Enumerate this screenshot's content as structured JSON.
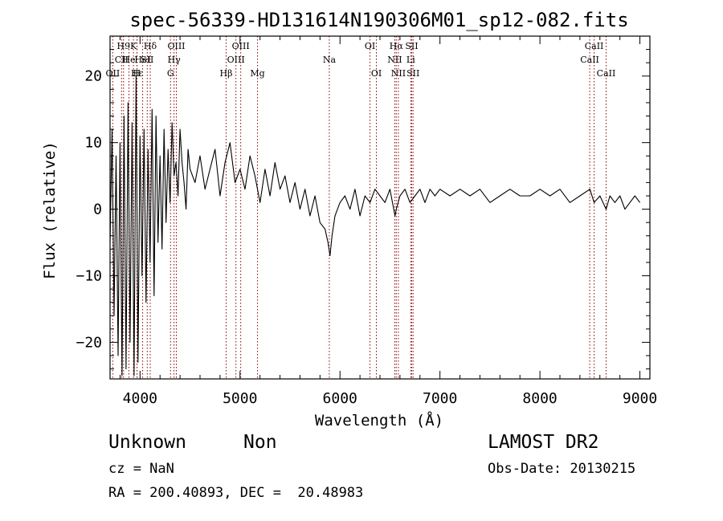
{
  "chart_data": {
    "type": "line",
    "title": "spec-56339-HD131614N190306M01_sp12-082.fits",
    "xlabel": "Wavelength (Å)",
    "ylabel": "Flux (relative)",
    "xlim": [
      3700,
      9100
    ],
    "ylim": [
      -25.5,
      26
    ],
    "xticks": [
      4000,
      5000,
      6000,
      7000,
      8000,
      9000
    ],
    "yticks": [
      -20,
      -10,
      0,
      10,
      20
    ],
    "x_minor_step": 200,
    "y_minor_step": 2,
    "grid": false,
    "line_color": "#000000",
    "line_mark_color": "#8b0000",
    "spectral_lines": [
      {
        "label": "H9",
        "wavelength": 3835,
        "row": 0
      },
      {
        "label": "CII",
        "wavelength": 3815,
        "row": 1
      },
      {
        "label": "OII",
        "wavelength": 3727,
        "row": 2
      },
      {
        "label": "He",
        "wavelength": 3889,
        "row": 1
      },
      {
        "label": "K",
        "wavelength": 3934,
        "row": 0
      },
      {
        "label": "H",
        "wavelength": 3969,
        "row": 2
      },
      {
        "label": "Hε",
        "wavelength": 3970,
        "row": 2
      },
      {
        "label": "HeI",
        "wavelength": 4026,
        "row": 1
      },
      {
        "label": "SII",
        "wavelength": 4072,
        "row": 1
      },
      {
        "label": "Hδ",
        "wavelength": 4102,
        "row": 0
      },
      {
        "label": "OIII",
        "wavelength": 4363,
        "row": 0
      },
      {
        "label": "Hγ",
        "wavelength": 4340,
        "row": 1
      },
      {
        "label": "G",
        "wavelength": 4305,
        "row": 2
      },
      {
        "label": "Hβ",
        "wavelength": 4861,
        "row": 2
      },
      {
        "label": "OIII",
        "wavelength": 5007,
        "row": 0
      },
      {
        "label": "OIII",
        "wavelength": 4959,
        "row": 1
      },
      {
        "label": "Mg",
        "wavelength": 5175,
        "row": 2
      },
      {
        "label": "Na",
        "wavelength": 5893,
        "row": 1
      },
      {
        "label": "OI",
        "wavelength": 6300,
        "row": 0
      },
      {
        "label": "OI",
        "wavelength": 6364,
        "row": 2
      },
      {
        "label": "Hα",
        "wavelength": 6563,
        "row": 0
      },
      {
        "label": "NII",
        "wavelength": 6548,
        "row": 1
      },
      {
        "label": "NII",
        "wavelength": 6584,
        "row": 2
      },
      {
        "label": "SII",
        "wavelength": 6717,
        "row": 0
      },
      {
        "label": "Li",
        "wavelength": 6708,
        "row": 1
      },
      {
        "label": "SII",
        "wavelength": 6731,
        "row": 2
      },
      {
        "label": "CaII",
        "wavelength": 8542,
        "row": 0
      },
      {
        "label": "CaII",
        "wavelength": 8498,
        "row": 1
      },
      {
        "label": "CaII",
        "wavelength": 8662,
        "row": 2
      }
    ],
    "series": [
      {
        "x": [
          3700,
          3720,
          3740,
          3760,
          3780,
          3800,
          3820,
          3840,
          3860,
          3880,
          3900,
          3920,
          3940,
          3960,
          3980,
          4000,
          4020,
          4040,
          4060,
          4080,
          4100,
          4120,
          4140,
          4160,
          4180,
          4200,
          4220,
          4240,
          4260,
          4280,
          4300,
          4320,
          4340,
          4360,
          4380,
          4400,
          4420,
          4440,
          4460,
          4480,
          4500,
          4550,
          4600,
          4650,
          4700,
          4750,
          4800,
          4850,
          4900,
          4950,
          5000,
          5050,
          5100,
          5150,
          5200,
          5250,
          5300,
          5350,
          5400,
          5450,
          5500,
          5550,
          5600,
          5650,
          5700,
          5750,
          5800,
          5850,
          5880,
          5900,
          5920,
          5950,
          6000,
          6050,
          6100,
          6150,
          6200,
          6250,
          6300,
          6350,
          6400,
          6450,
          6500,
          6550,
          6563,
          6600,
          6650,
          6700,
          6750,
          6800,
          6850,
          6900,
          6950,
          7000,
          7100,
          7200,
          7300,
          7400,
          7500,
          7600,
          7700,
          7800,
          7900,
          8000,
          8100,
          8200,
          8300,
          8400,
          8500,
          8542,
          8600,
          8662,
          8700,
          8750,
          8800,
          8850,
          8900,
          8950,
          9000
        ],
        "y": [
          -5,
          12,
          -16,
          8,
          -22,
          10,
          -25,
          14,
          -24,
          16,
          -20,
          13,
          -25,
          20,
          -23,
          11,
          -10,
          12,
          -14,
          9,
          -8,
          15,
          -13,
          14,
          -5,
          8,
          -6,
          12,
          -2,
          9,
          1,
          13,
          5,
          7,
          2,
          12,
          7,
          4,
          0,
          9,
          6,
          4,
          8,
          3,
          6,
          9,
          2,
          7,
          10,
          4,
          6,
          3,
          8,
          5,
          1,
          6,
          2,
          7,
          3,
          5,
          1,
          4,
          0,
          3,
          -1,
          2,
          -2,
          -3,
          -5,
          -7,
          -4,
          -1,
          1,
          2,
          0,
          3,
          -1,
          2,
          1,
          3,
          2,
          1,
          3,
          -1,
          0,
          2,
          3,
          1,
          2,
          3,
          1,
          3,
          2,
          3,
          2,
          3,
          2,
          3,
          1,
          2,
          3,
          2,
          2,
          3,
          2,
          3,
          1,
          2,
          3,
          1,
          2,
          0,
          2,
          1,
          2,
          0,
          1,
          2,
          1
        ]
      }
    ]
  },
  "info": {
    "class_label": "Unknown",
    "subclass_label": "Non",
    "survey_label": "LAMOST DR2",
    "cz_text": "cz = NaN",
    "obs_date_text": "Obs-Date: 20130215",
    "coords_text": "RA = 200.40893, DEC =  20.48983"
  }
}
